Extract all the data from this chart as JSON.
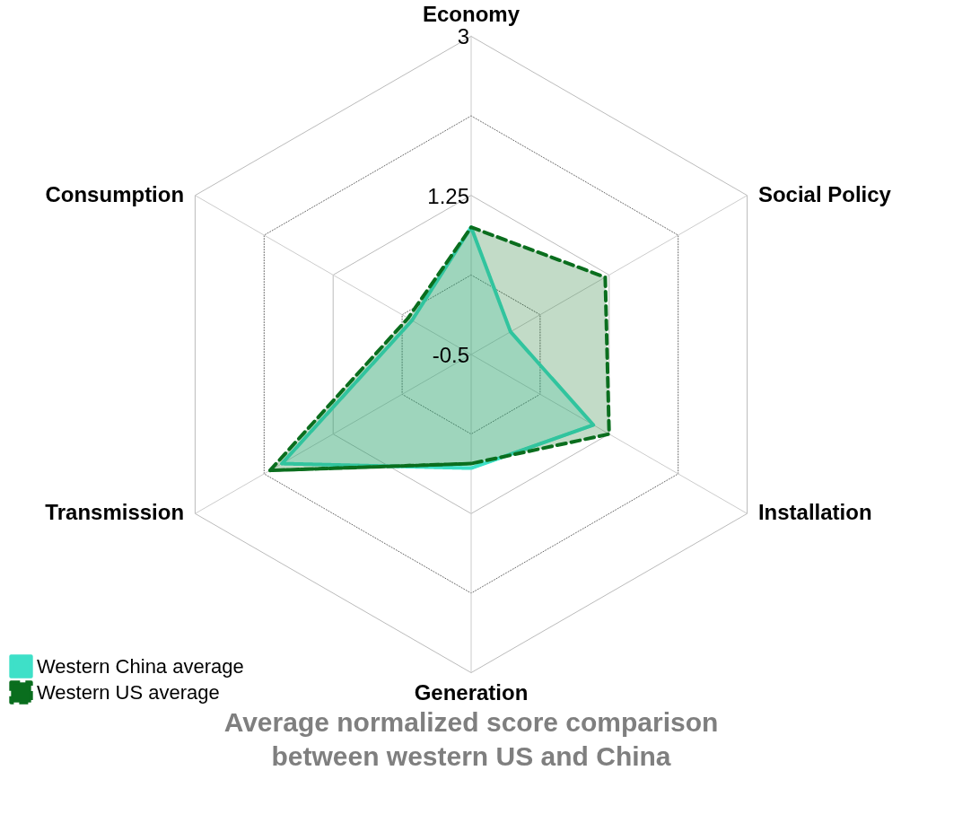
{
  "chart_data": {
    "type": "radar",
    "title": "Average normalized score comparison\nbetween western US and China",
    "categories": [
      "Economy",
      "Social Policy",
      "Installation",
      "Generation",
      "Transmission",
      "Consumption"
    ],
    "ylim": [
      -0.5,
      3
    ],
    "yticks": [
      -0.5,
      1.25,
      3
    ],
    "grid": true,
    "legend": "bottom left",
    "series": [
      {
        "name": "Western China average",
        "color": "#3ee0c8",
        "line_style": "solid",
        "values": [
          0.9,
          0.0,
          1.05,
          0.75,
          1.9,
          0.25
        ]
      },
      {
        "name": "Western US average",
        "color": "#0a6e1e",
        "line_style": "dashed",
        "values": [
          0.9,
          1.2,
          1.25,
          0.7,
          2.05,
          0.3
        ]
      }
    ]
  }
}
